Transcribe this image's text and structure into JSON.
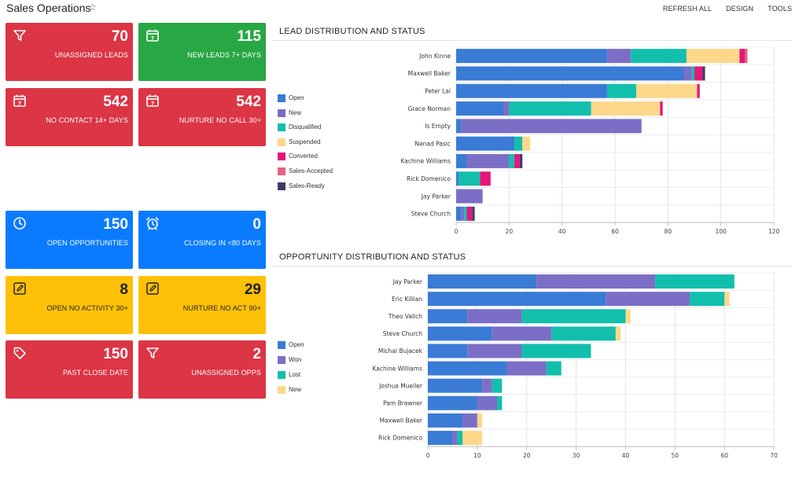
{
  "app": {
    "title": "Sales Operations",
    "star_icon": "star-outline-icon"
  },
  "toolbar": {
    "actions": [
      "REFRESH ALL",
      "DESIGN",
      "TOOLS"
    ]
  },
  "tiles": [
    {
      "value": "70",
      "label": "UNASSIGNED LEADS",
      "color": "#dc3545",
      "icon": "filter-icon"
    },
    {
      "value": "115",
      "label": "NEW LEADS 7+ DAYS",
      "color": "#28a745",
      "icon": "calendar-icon"
    },
    {
      "value": "542",
      "label": "NO CONTACT 14+ DAYS",
      "color": "#dc3545",
      "icon": "calendar-icon"
    },
    {
      "value": "542",
      "label": "NURTURE NO CALL 30+",
      "color": "#dc3545",
      "icon": "calendar-icon"
    },
    {
      "value": "150",
      "label": "OPEN OPPORTUNITIES",
      "color": "#0a7bff",
      "icon": "clock-icon"
    },
    {
      "value": "0",
      "label": "CLOSING IN <80 DAYS",
      "color": "#0a7bff",
      "icon": "alarm-clock-icon"
    },
    {
      "value": "8",
      "label": "OPEN NO ACTIVITY 30+",
      "color": "#ffc107",
      "icon": "edit-icon"
    },
    {
      "value": "29",
      "label": "NURTURE NO ACT 90+",
      "color": "#ffc107",
      "icon": "edit-icon"
    },
    {
      "value": "150",
      "label": "PAST CLOSE DATE",
      "color": "#dc3545",
      "icon": "tag-icon"
    },
    {
      "value": "2",
      "label": "UNASSIGNED OPPS",
      "color": "#dc3545",
      "icon": "filter-icon"
    }
  ],
  "lead_chart": {
    "title": "LEAD DISTRIBUTION AND STATUS"
  },
  "opp_chart": {
    "title": "OPPORTUNITY DISTRIBUTION AND STATUS"
  },
  "chart_data": [
    {
      "type": "bar",
      "orientation": "horizontal",
      "stacked": true,
      "title": "LEAD DISTRIBUTION AND STATUS",
      "categories": [
        "John Kinne",
        "Maxwell Baker",
        "Peter Lai",
        "Grace Norman",
        "Is Empty",
        "Nenad Pasic",
        "Kachine Williams",
        "Rick Domenico",
        "Jay Parker",
        "Steve Church"
      ],
      "series": [
        {
          "name": "Open",
          "color": "#3a7bd5",
          "values": [
            57,
            86,
            57,
            18,
            2,
            22,
            4,
            1,
            0,
            2
          ]
        },
        {
          "name": "New",
          "color": "#7b6ec6",
          "values": [
            9,
            3,
            0,
            2,
            68,
            0,
            16,
            0,
            10,
            1
          ]
        },
        {
          "name": "Disqualified",
          "color": "#12bfad",
          "values": [
            21,
            1,
            11,
            31,
            0,
            3,
            2,
            8,
            0,
            1
          ]
        },
        {
          "name": "Suspended",
          "color": "#fdd78a",
          "values": [
            20,
            0,
            23,
            26,
            0,
            3,
            0,
            0,
            0,
            0
          ]
        },
        {
          "name": "Converted",
          "color": "#e5157a",
          "values": [
            2,
            3,
            1,
            1,
            0,
            0,
            2,
            4,
            0,
            2
          ]
        },
        {
          "name": "Sales-Accepted",
          "color": "#ea5f80",
          "values": [
            1,
            0,
            0,
            0,
            0,
            0,
            0,
            0,
            0,
            0
          ]
        },
        {
          "name": "Sales-Ready",
          "color": "#44386b",
          "values": [
            0,
            1,
            0,
            0,
            0,
            0,
            1,
            0,
            0,
            1
          ]
        }
      ],
      "xlim": [
        0,
        120
      ],
      "xticks": [
        0,
        20,
        40,
        60,
        80,
        100,
        120
      ],
      "grid": true,
      "legend": "left"
    },
    {
      "type": "bar",
      "orientation": "horizontal",
      "stacked": true,
      "title": "OPPORTUNITY DISTRIBUTION AND STATUS",
      "categories": [
        "Jay Parker",
        "Eric Killian",
        "Theo Valich",
        "Steve Church",
        "Michal Bujacek",
        "Kachine Williams",
        "Joshua Mueller",
        "Pam Brawner",
        "Maxwell Baker",
        "Rick Domenico"
      ],
      "series": [
        {
          "name": "Open",
          "color": "#3a7bd5",
          "values": [
            22,
            36,
            8,
            13,
            8,
            16,
            11,
            10,
            7,
            5
          ]
        },
        {
          "name": "Won",
          "color": "#7b6ec6",
          "values": [
            24,
            17,
            11,
            12,
            11,
            8,
            2,
            4,
            3,
            1
          ]
        },
        {
          "name": "Lost",
          "color": "#12bfad",
          "values": [
            16,
            7,
            21,
            13,
            14,
            3,
            2,
            1,
            0,
            1
          ]
        },
        {
          "name": "New",
          "color": "#fdd78a",
          "values": [
            0,
            1,
            1,
            1,
            0,
            0,
            0,
            0,
            1,
            4
          ]
        }
      ],
      "xlim": [
        0,
        70
      ],
      "xticks": [
        0,
        10,
        20,
        30,
        40,
        50,
        60,
        70
      ],
      "grid": true,
      "legend": "left"
    }
  ]
}
